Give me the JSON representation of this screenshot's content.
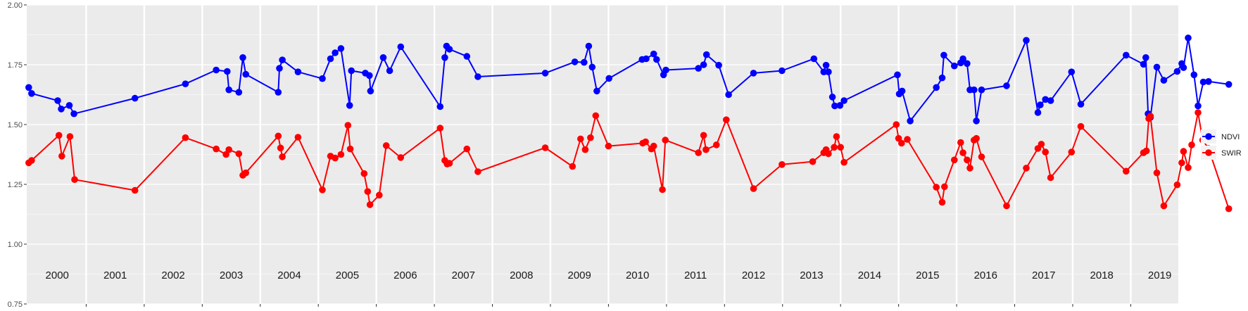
{
  "chart_data": {
    "type": "line",
    "title": "",
    "xlabel": "",
    "ylabel": "",
    "ylim": [
      0.75,
      2.0
    ],
    "yticks": [
      "0.75",
      "1.00",
      "1.25",
      "1.50",
      "1.75",
      "2.00"
    ],
    "xlim": [
      2000.0,
      2019.82
    ],
    "year_labels": [
      "2000",
      "2001",
      "2002",
      "2003",
      "2004",
      "2005",
      "2006",
      "2007",
      "2008",
      "2009",
      "2010",
      "2011",
      "2012",
      "2013",
      "2014",
      "2015",
      "2016",
      "2017",
      "2018",
      "2019"
    ],
    "grid": true,
    "background": "#ebebeb",
    "legend_position": "right",
    "series": [
      {
        "name": "NDVI",
        "color": "#0000ff",
        "points": [
          [
            2000.01,
            1.655
          ],
          [
            2000.06,
            1.63
          ],
          [
            2000.51,
            1.6
          ],
          [
            2000.57,
            1.565
          ],
          [
            2000.71,
            1.58
          ],
          [
            2000.79,
            1.545
          ],
          [
            2001.84,
            1.61
          ],
          [
            2002.71,
            1.67
          ],
          [
            2003.24,
            1.728
          ],
          [
            2003.43,
            1.722
          ],
          [
            2003.46,
            1.645
          ],
          [
            2003.63,
            1.635
          ],
          [
            2003.7,
            1.78
          ],
          [
            2003.75,
            1.71
          ],
          [
            2004.31,
            1.635
          ],
          [
            2004.33,
            1.735
          ],
          [
            2004.38,
            1.77
          ],
          [
            2004.65,
            1.72
          ],
          [
            2005.07,
            1.692
          ],
          [
            2005.21,
            1.775
          ],
          [
            2005.29,
            1.8
          ],
          [
            2005.39,
            1.818
          ],
          [
            2005.54,
            1.58
          ],
          [
            2005.57,
            1.725
          ],
          [
            2005.81,
            1.715
          ],
          [
            2005.88,
            1.705
          ],
          [
            2005.9,
            1.64
          ],
          [
            2006.12,
            1.78
          ],
          [
            2006.23,
            1.725
          ],
          [
            2006.42,
            1.825
          ],
          [
            2007.1,
            1.575
          ],
          [
            2007.18,
            1.78
          ],
          [
            2007.21,
            1.828
          ],
          [
            2007.26,
            1.815
          ],
          [
            2007.56,
            1.785
          ],
          [
            2007.75,
            1.7
          ],
          [
            2008.91,
            1.715
          ],
          [
            2009.42,
            1.762
          ],
          [
            2009.58,
            1.76
          ],
          [
            2009.66,
            1.828
          ],
          [
            2009.72,
            1.74
          ],
          [
            2009.8,
            1.64
          ],
          [
            2010.01,
            1.693
          ],
          [
            2010.58,
            1.772
          ],
          [
            2010.65,
            1.775
          ],
          [
            2010.78,
            1.795
          ],
          [
            2010.83,
            1.772
          ],
          [
            2010.95,
            1.708
          ],
          [
            2010.99,
            1.728
          ],
          [
            2011.55,
            1.735
          ],
          [
            2011.64,
            1.75
          ],
          [
            2011.69,
            1.792
          ],
          [
            2011.9,
            1.748
          ],
          [
            2012.07,
            1.625
          ],
          [
            2012.5,
            1.715
          ],
          [
            2012.99,
            1.725
          ],
          [
            2013.54,
            1.775
          ],
          [
            2013.71,
            1.72
          ],
          [
            2013.75,
            1.748
          ],
          [
            2013.79,
            1.72
          ],
          [
            2013.86,
            1.615
          ],
          [
            2013.9,
            1.578
          ],
          [
            2013.99,
            1.58
          ],
          [
            2014.06,
            1.6
          ],
          [
            2014.98,
            1.708
          ],
          [
            2015.01,
            1.628
          ],
          [
            2015.06,
            1.64
          ],
          [
            2015.2,
            1.515
          ],
          [
            2015.65,
            1.655
          ],
          [
            2015.75,
            1.695
          ],
          [
            2015.78,
            1.79
          ],
          [
            2015.96,
            1.745
          ],
          [
            2016.07,
            1.758
          ],
          [
            2016.11,
            1.775
          ],
          [
            2016.18,
            1.755
          ],
          [
            2016.23,
            1.645
          ],
          [
            2016.3,
            1.645
          ],
          [
            2016.34,
            1.515
          ],
          [
            2016.43,
            1.645
          ],
          [
            2016.86,
            1.662
          ],
          [
            2017.2,
            1.852
          ],
          [
            2017.4,
            1.55
          ],
          [
            2017.44,
            1.582
          ],
          [
            2017.53,
            1.605
          ],
          [
            2017.62,
            1.6
          ],
          [
            2017.98,
            1.72
          ],
          [
            2018.14,
            1.585
          ],
          [
            2018.92,
            1.79
          ],
          [
            2019.22,
            1.752
          ],
          [
            2019.26,
            1.78
          ],
          [
            2019.3,
            1.545
          ],
          [
            2019.34,
            1.53
          ],
          [
            2019.45,
            1.74
          ],
          [
            2019.57,
            1.685
          ],
          [
            2019.8,
            1.722
          ],
          [
            2019.88,
            1.755
          ],
          [
            2019.91,
            1.738
          ],
          [
            2019.99,
            1.862
          ],
          [
            2020.09,
            1.708
          ],
          [
            2020.16,
            1.578
          ],
          [
            2020.25,
            1.678
          ],
          [
            2020.34,
            1.68
          ],
          [
            2020.69,
            1.668
          ]
        ]
      },
      {
        "name": "SWIR",
        "color": "#ff0000",
        "points": [
          [
            2000.01,
            1.34
          ],
          [
            2000.06,
            1.35
          ],
          [
            2000.53,
            1.455
          ],
          [
            2000.58,
            1.368
          ],
          [
            2000.72,
            1.45
          ],
          [
            2000.8,
            1.27
          ],
          [
            2001.84,
            1.225
          ],
          [
            2002.71,
            1.445
          ],
          [
            2003.24,
            1.398
          ],
          [
            2003.41,
            1.375
          ],
          [
            2003.46,
            1.395
          ],
          [
            2003.63,
            1.378
          ],
          [
            2003.7,
            1.288
          ],
          [
            2003.75,
            1.298
          ],
          [
            2004.31,
            1.452
          ],
          [
            2004.35,
            1.402
          ],
          [
            2004.38,
            1.365
          ],
          [
            2004.65,
            1.447
          ],
          [
            2005.07,
            1.227
          ],
          [
            2005.21,
            1.368
          ],
          [
            2005.29,
            1.36
          ],
          [
            2005.39,
            1.375
          ],
          [
            2005.51,
            1.497
          ],
          [
            2005.55,
            1.398
          ],
          [
            2005.79,
            1.295
          ],
          [
            2005.85,
            1.22
          ],
          [
            2005.89,
            1.165
          ],
          [
            2006.05,
            1.205
          ],
          [
            2006.17,
            1.412
          ],
          [
            2006.42,
            1.362
          ],
          [
            2007.1,
            1.485
          ],
          [
            2007.18,
            1.35
          ],
          [
            2007.22,
            1.335
          ],
          [
            2007.26,
            1.338
          ],
          [
            2007.56,
            1.398
          ],
          [
            2007.75,
            1.303
          ],
          [
            2008.91,
            1.403
          ],
          [
            2009.38,
            1.325
          ],
          [
            2009.52,
            1.44
          ],
          [
            2009.6,
            1.395
          ],
          [
            2009.69,
            1.445
          ],
          [
            2009.78,
            1.537
          ],
          [
            2010.0,
            1.41
          ],
          [
            2010.59,
            1.422
          ],
          [
            2010.64,
            1.428
          ],
          [
            2010.74,
            1.398
          ],
          [
            2010.78,
            1.41
          ],
          [
            2010.93,
            1.228
          ],
          [
            2010.98,
            1.435
          ],
          [
            2011.55,
            1.382
          ],
          [
            2011.64,
            1.455
          ],
          [
            2011.68,
            1.395
          ],
          [
            2011.86,
            1.415
          ],
          [
            2012.03,
            1.52
          ],
          [
            2012.5,
            1.232
          ],
          [
            2012.99,
            1.333
          ],
          [
            2013.52,
            1.345
          ],
          [
            2013.71,
            1.382
          ],
          [
            2013.75,
            1.395
          ],
          [
            2013.79,
            1.378
          ],
          [
            2013.89,
            1.405
          ],
          [
            2013.93,
            1.45
          ],
          [
            2014.0,
            1.405
          ],
          [
            2014.06,
            1.342
          ],
          [
            2014.96,
            1.5
          ],
          [
            2015.0,
            1.442
          ],
          [
            2015.05,
            1.422
          ],
          [
            2015.15,
            1.438
          ],
          [
            2015.65,
            1.238
          ],
          [
            2015.75,
            1.175
          ],
          [
            2015.79,
            1.24
          ],
          [
            2015.96,
            1.352
          ],
          [
            2016.07,
            1.425
          ],
          [
            2016.11,
            1.382
          ],
          [
            2016.18,
            1.352
          ],
          [
            2016.23,
            1.318
          ],
          [
            2016.3,
            1.435
          ],
          [
            2016.34,
            1.442
          ],
          [
            2016.43,
            1.365
          ],
          [
            2016.86,
            1.16
          ],
          [
            2017.2,
            1.318
          ],
          [
            2017.4,
            1.4
          ],
          [
            2017.46,
            1.418
          ],
          [
            2017.53,
            1.385
          ],
          [
            2017.62,
            1.278
          ],
          [
            2017.98,
            1.385
          ],
          [
            2018.14,
            1.492
          ],
          [
            2018.92,
            1.305
          ],
          [
            2019.22,
            1.382
          ],
          [
            2019.27,
            1.39
          ],
          [
            2019.31,
            1.525
          ],
          [
            2019.34,
            1.535
          ],
          [
            2019.45,
            1.298
          ],
          [
            2019.57,
            1.16
          ],
          [
            2019.8,
            1.248
          ],
          [
            2019.88,
            1.34
          ],
          [
            2019.91,
            1.388
          ],
          [
            2019.99,
            1.32
          ],
          [
            2020.05,
            1.415
          ],
          [
            2020.16,
            1.55
          ],
          [
            2020.24,
            1.435
          ],
          [
            2020.34,
            1.4
          ],
          [
            2020.69,
            1.148
          ]
        ]
      }
    ]
  }
}
